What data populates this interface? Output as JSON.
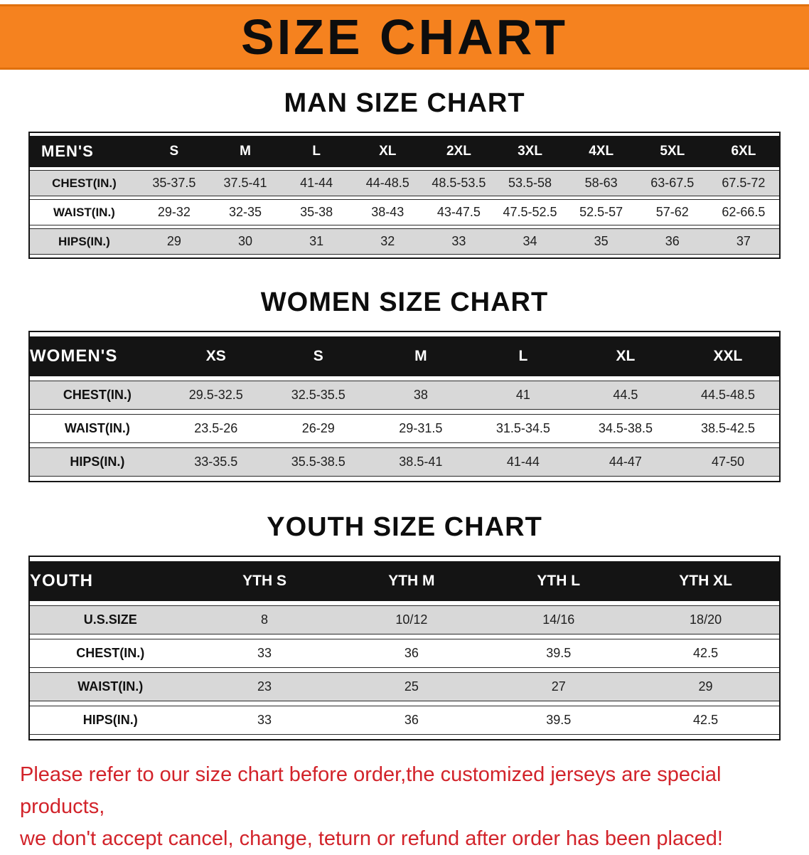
{
  "banner": {
    "title": "SIZE CHART",
    "bg_color": "#f5821f"
  },
  "sections": [
    {
      "id": "men",
      "title": "MAN SIZE CHART",
      "table": {
        "header": [
          "MEN'S",
          "S",
          "M",
          "L",
          "XL",
          "2XL",
          "3XL",
          "4XL",
          "5XL",
          "6XL"
        ],
        "rows": [
          {
            "label": "CHEST(IN.)",
            "values": [
              "35-37.5",
              "37.5-41",
              "41-44",
              "44-48.5",
              "48.5-53.5",
              "53.5-58",
              "58-63",
              "63-67.5",
              "67.5-72"
            ]
          },
          {
            "label": "WAIST(IN.)",
            "values": [
              "29-32",
              "32-35",
              "35-38",
              "38-43",
              "43-47.5",
              "47.5-52.5",
              "52.5-57",
              "57-62",
              "62-66.5"
            ]
          },
          {
            "label": "HIPS(IN.)",
            "values": [
              "29",
              "30",
              "31",
              "32",
              "33",
              "34",
              "35",
              "36",
              "37"
            ]
          }
        ]
      }
    },
    {
      "id": "women",
      "title": "WOMEN SIZE CHART",
      "table": {
        "header": [
          "WOMEN'S",
          "XS",
          "S",
          "M",
          "L",
          "XL",
          "XXL"
        ],
        "rows": [
          {
            "label": "CHEST(IN.)",
            "values": [
              "29.5-32.5",
              "32.5-35.5",
              "38",
              "41",
              "44.5",
              "44.5-48.5"
            ]
          },
          {
            "label": "WAIST(IN.)",
            "values": [
              "23.5-26",
              "26-29",
              "29-31.5",
              "31.5-34.5",
              "34.5-38.5",
              "38.5-42.5"
            ]
          },
          {
            "label": "HIPS(IN.)",
            "values": [
              "33-35.5",
              "35.5-38.5",
              "38.5-41",
              "41-44",
              "44-47",
              "47-50"
            ]
          }
        ]
      }
    },
    {
      "id": "youth",
      "title": "YOUTH SIZE CHART",
      "table": {
        "header": [
          "YOUTH",
          "YTH S",
          "YTH M",
          "YTH L",
          "YTH XL"
        ],
        "rows": [
          {
            "label": "U.S.SIZE",
            "values": [
              "8",
              "10/12",
              "14/16",
              "18/20"
            ]
          },
          {
            "label": "CHEST(IN.)",
            "values": [
              "33",
              "36",
              "39.5",
              "42.5"
            ]
          },
          {
            "label": "WAIST(IN.)",
            "values": [
              "23",
              "25",
              "27",
              "29"
            ]
          },
          {
            "label": "HIPS(IN.)",
            "values": [
              "33",
              "36",
              "39.5",
              "42.5"
            ]
          }
        ]
      }
    }
  ],
  "footer": {
    "text_color": "#d2232a",
    "lines": [
      "Please refer to our size chart before order,the customized jerseys are special products,",
      "we don't accept cancel, change, teturn or refund after order has been placed!"
    ]
  }
}
